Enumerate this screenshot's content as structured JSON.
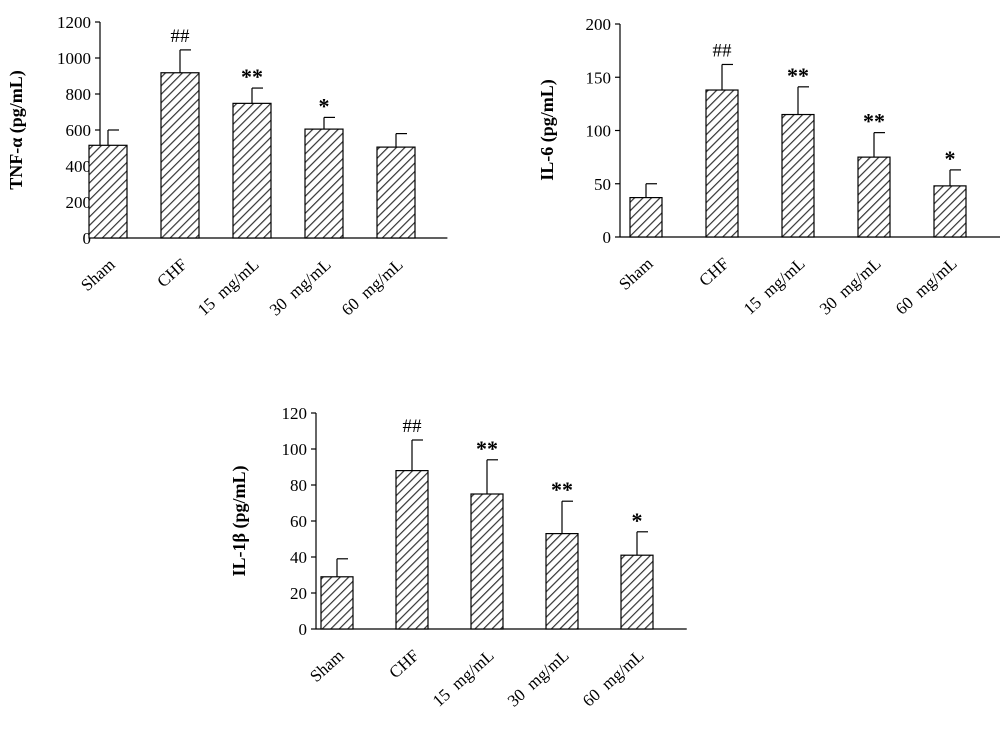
{
  "chart_data": [
    {
      "type": "bar",
      "ylabel": "TNF-α (pg/mL)",
      "categories": [
        "Sham",
        "CHF",
        "15  mg/mL",
        "30  mg/mL",
        "60  mg/mL"
      ],
      "values": [
        515,
        918,
        748,
        605,
        505
      ],
      "errors": [
        85,
        127,
        85,
        65,
        75
      ],
      "annotations": [
        "",
        "##",
        "**",
        "*",
        ""
      ],
      "yticks": [
        "0",
        "200",
        "400",
        "600",
        "800",
        "1000",
        "1200"
      ],
      "ylim": [
        0,
        1200
      ],
      "bar_fill": "hatched"
    },
    {
      "type": "bar",
      "ylabel": "IL-6 (pg/mL)",
      "categories": [
        "Sham",
        "CHF",
        "15  mg/mL",
        "30  mg/mL",
        "60  mg/mL"
      ],
      "values": [
        37,
        138,
        115,
        75,
        48
      ],
      "errors": [
        13,
        24,
        26,
        23,
        15
      ],
      "annotations": [
        "",
        "##",
        "**",
        "**",
        "*"
      ],
      "yticks": [
        "0",
        "50",
        "100",
        "150",
        "200"
      ],
      "ylim": [
        0,
        200
      ],
      "bar_fill": "hatched"
    },
    {
      "type": "bar",
      "ylabel": "IL-1β (pg/mL)",
      "categories": [
        "Sham",
        "CHF",
        "15  mg/mL",
        "30  mg/mL",
        "60  mg/mL"
      ],
      "values": [
        29,
        88,
        75,
        53,
        41
      ],
      "errors": [
        10,
        17,
        19,
        18,
        13
      ],
      "annotations": [
        "",
        "##",
        "**",
        "**",
        "*"
      ],
      "yticks": [
        "0",
        "20",
        "40",
        "60",
        "80",
        "100",
        "120"
      ],
      "ylim": [
        0,
        120
      ],
      "bar_fill": "hatched"
    }
  ],
  "colors": {
    "axis": "#000000",
    "bar_border": "#000000",
    "bar_hatch": "#333333",
    "background": "#ffffff"
  }
}
